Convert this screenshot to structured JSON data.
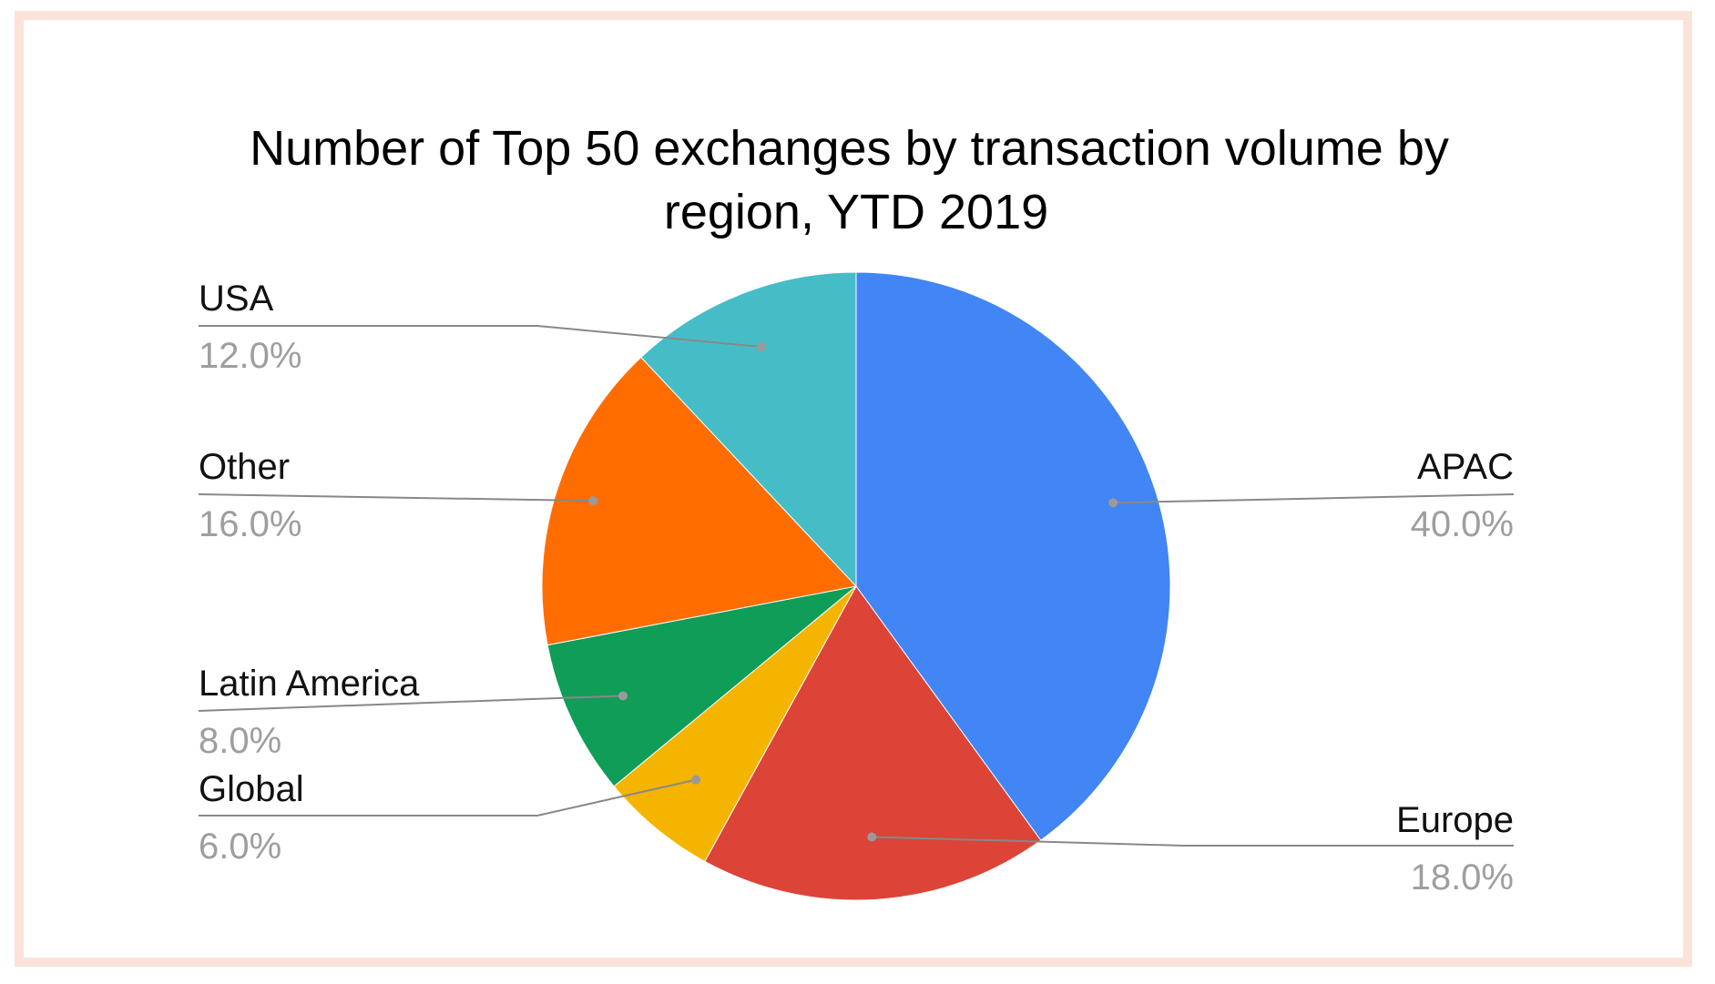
{
  "chart_data": {
    "type": "pie",
    "title": "Number of Top 50 exchanges by transaction volume by region, YTD 2019",
    "title_lines": [
      "Number of Top 50 exchanges by transaction volume by",
      "region, YTD 2019"
    ],
    "slices": [
      {
        "label": "APAC",
        "value": 40.0,
        "display": "40.0%",
        "color": "#4285f4"
      },
      {
        "label": "Europe",
        "value": 18.0,
        "display": "18.0%",
        "color": "#db4437"
      },
      {
        "label": "Global",
        "value": 6.0,
        "display": "6.0%",
        "color": "#f4b400"
      },
      {
        "label": "Latin America",
        "value": 8.0,
        "display": "8.0%",
        "color": "#0f9d58"
      },
      {
        "label": "Other",
        "value": 16.0,
        "display": "16.0%",
        "color": "#ff6d01"
      },
      {
        "label": "USA",
        "value": 12.0,
        "display": "12.0%",
        "color": "#46bdc6"
      }
    ],
    "start_angle": "12 o'clock",
    "direction": "clockwise",
    "legend": "none",
    "label_placement": "outside with leader lines"
  },
  "colors": {
    "frame_border": "#fbe3da",
    "label_text": "#111111",
    "percent_text": "#9e9e9e"
  }
}
